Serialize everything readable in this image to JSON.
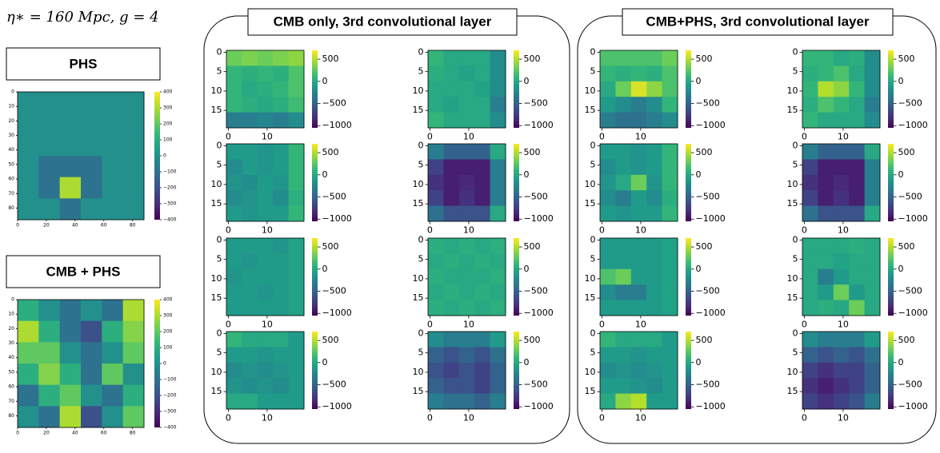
{
  "caption": "η∗ = 160 Mpc, g = 4",
  "panel_groups": [
    {
      "title": "CMB only, 3rd convolutional layer"
    },
    {
      "title": "CMB+PHS, 3rd convolutional layer"
    }
  ],
  "chart_data": [
    {
      "type": "heatmap",
      "title": "PHS",
      "colormap": "viridis",
      "xlim": [
        0,
        88
      ],
      "ylim": [
        88,
        0
      ],
      "xticks": [
        0,
        20,
        40,
        60,
        80
      ],
      "yticks": [
        0,
        10,
        20,
        30,
        40,
        50,
        60,
        70,
        80
      ],
      "clim": [
        -400,
        400
      ],
      "cticks": [
        400,
        300,
        200,
        100,
        0,
        {
          "value": -100,
          "label": "−100"
        },
        {
          "value": -200,
          "label": "−200"
        },
        {
          "value": -300,
          "label": "−300"
        },
        {
          "value": -400,
          "label": "−400"
        }
      ],
      "values": [
        [
          0,
          0,
          0,
          0,
          0,
          0
        ],
        [
          0,
          0,
          0,
          0,
          0,
          0
        ],
        [
          0,
          0,
          0,
          0,
          0,
          0
        ],
        [
          0,
          -100,
          -100,
          -100,
          0,
          0
        ],
        [
          0,
          -100,
          300,
          -100,
          0,
          0
        ],
        [
          0,
          0,
          -100,
          0,
          0,
          0
        ]
      ]
    },
    {
      "type": "heatmap",
      "title": "CMB + PHS",
      "colormap": "viridis",
      "xlim": [
        0,
        88
      ],
      "ylim": [
        88,
        0
      ],
      "xticks": [
        0,
        20,
        40,
        60,
        80
      ],
      "yticks": [
        0,
        10,
        20,
        30,
        40,
        50,
        60,
        70,
        80
      ],
      "clim": [
        -400,
        400
      ],
      "cticks": [
        400,
        300,
        200,
        100,
        0,
        {
          "value": -100,
          "label": "−100"
        },
        {
          "value": -200,
          "label": "−200"
        },
        {
          "value": -300,
          "label": "−300"
        },
        {
          "value": -400,
          "label": "−400"
        }
      ],
      "values": [
        [
          100,
          0,
          -100,
          0,
          -100,
          300
        ],
        [
          300,
          100,
          -100,
          -200,
          100,
          250
        ],
        [
          200,
          200,
          0,
          -100,
          0,
          200
        ],
        [
          100,
          250,
          100,
          -100,
          200,
          0
        ],
        [
          -100,
          100,
          200,
          0,
          -100,
          100
        ],
        [
          0,
          -100,
          300,
          -200,
          0,
          200
        ]
      ]
    },
    {
      "type": "heatmap",
      "colormap": "viridis",
      "xlim": [
        -0.5,
        19.5
      ],
      "ylim": [
        19.5,
        -0.5
      ],
      "xticks": [
        0,
        10
      ],
      "yticks": [
        0,
        5,
        10,
        15
      ],
      "clim": [
        -1050,
        700
      ],
      "cticks": [
        500,
        0,
        {
          "value": -500,
          "label": "−500"
        },
        {
          "value": -1000,
          "label": "−1000"
        }
      ],
      "values": [
        [
          300,
          350,
          300,
          350,
          400
        ],
        [
          100,
          50,
          100,
          50,
          200
        ],
        [
          100,
          0,
          50,
          100,
          200
        ],
        [
          100,
          50,
          0,
          50,
          150
        ],
        [
          -300,
          -300,
          -250,
          -300,
          -200
        ]
      ]
    },
    {
      "type": "heatmap",
      "colormap": "viridis",
      "xlim": [
        -0.5,
        19.5
      ],
      "ylim": [
        19.5,
        -0.5
      ],
      "xticks": [
        0,
        10
      ],
      "yticks": [
        0,
        5,
        10,
        15
      ],
      "clim": [
        -1050,
        700
      ],
      "cticks": [
        500,
        0,
        {
          "value": -500,
          "label": "−500"
        },
        {
          "value": -1000,
          "label": "−1000"
        }
      ],
      "values": [
        [
          100,
          0,
          0,
          0,
          -200
        ],
        [
          50,
          0,
          -50,
          0,
          -200
        ],
        [
          0,
          0,
          0,
          -50,
          -200
        ],
        [
          0,
          -50,
          0,
          0,
          -300
        ],
        [
          100,
          0,
          0,
          0,
          -200
        ]
      ]
    },
    {
      "type": "heatmap",
      "colormap": "viridis",
      "xlim": [
        -0.5,
        19.5
      ],
      "ylim": [
        19.5,
        -0.5
      ],
      "xticks": [
        0,
        10
      ],
      "yticks": [
        0,
        5,
        10,
        15
      ],
      "clim": [
        -1050,
        700
      ],
      "cticks": [
        500,
        0,
        {
          "value": -500,
          "label": "−500"
        },
        {
          "value": -1000,
          "label": "−1000"
        }
      ],
      "values": [
        [
          -100,
          -100,
          -150,
          -100,
          100
        ],
        [
          -200,
          -100,
          -150,
          -100,
          100
        ],
        [
          -150,
          -200,
          -100,
          -150,
          100
        ],
        [
          -200,
          -150,
          -100,
          -200,
          50
        ],
        [
          -100,
          -150,
          -100,
          -100,
          100
        ]
      ]
    },
    {
      "type": "heatmap",
      "colormap": "viridis",
      "xlim": [
        -0.5,
        19.5
      ],
      "ylim": [
        19.5,
        -0.5
      ],
      "xticks": [
        0,
        10
      ],
      "yticks": [
        0,
        5,
        10,
        15
      ],
      "clim": [
        -1050,
        700
      ],
      "cticks": [
        500,
        0,
        {
          "value": -500,
          "label": "−500"
        },
        {
          "value": -1000,
          "label": "−1000"
        }
      ],
      "values": [
        [
          -300,
          -500,
          -500,
          -500,
          0
        ],
        [
          -700,
          -900,
          -900,
          -900,
          -300
        ],
        [
          -800,
          -900,
          -850,
          -900,
          -300
        ],
        [
          -700,
          -900,
          -800,
          -900,
          -300
        ],
        [
          -400,
          -600,
          -600,
          -600,
          0
        ]
      ]
    },
    {
      "type": "heatmap",
      "colormap": "viridis",
      "xlim": [
        -0.5,
        19.5
      ],
      "ylim": [
        19.5,
        -0.5
      ],
      "xticks": [
        0,
        10
      ],
      "yticks": [
        0,
        5,
        10,
        15
      ],
      "clim": [
        -1050,
        700
      ],
      "cticks": [
        500,
        0,
        {
          "value": -500,
          "label": "−500"
        },
        {
          "value": -1000,
          "label": "−1000"
        }
      ],
      "values": [
        [
          -100,
          -100,
          -100,
          -150,
          -50
        ],
        [
          -100,
          -150,
          -100,
          -100,
          -50
        ],
        [
          -150,
          -100,
          -100,
          -100,
          -50
        ],
        [
          -100,
          -100,
          -150,
          -100,
          -50
        ],
        [
          -100,
          -100,
          -100,
          -100,
          -50
        ]
      ]
    },
    {
      "type": "heatmap",
      "colormap": "viridis",
      "xlim": [
        -0.5,
        19.5
      ],
      "ylim": [
        19.5,
        -0.5
      ],
      "xticks": [
        0,
        10
      ],
      "yticks": [
        0,
        5,
        10,
        15
      ],
      "clim": [
        -1050,
        700
      ],
      "cticks": [
        500,
        0,
        {
          "value": -500,
          "label": "−500"
        },
        {
          "value": -1000,
          "label": "−1000"
        }
      ],
      "values": [
        [
          50,
          0,
          50,
          0,
          50
        ],
        [
          0,
          50,
          0,
          50,
          0
        ],
        [
          50,
          0,
          0,
          0,
          50
        ],
        [
          0,
          50,
          0,
          50,
          0
        ],
        [
          50,
          0,
          50,
          0,
          50
        ]
      ]
    },
    {
      "type": "heatmap",
      "colormap": "viridis",
      "xlim": [
        -0.5,
        19.5
      ],
      "ylim": [
        19.5,
        -0.5
      ],
      "xticks": [
        0,
        10
      ],
      "yticks": [
        0,
        5,
        10,
        15
      ],
      "clim": [
        -1050,
        700
      ],
      "cticks": [
        500,
        0,
        {
          "value": -500,
          "label": "−500"
        },
        {
          "value": -1000,
          "label": "−1000"
        }
      ],
      "values": [
        [
          100,
          0,
          0,
          0,
          -100
        ],
        [
          -100,
          -100,
          -150,
          -100,
          -100
        ],
        [
          -200,
          -150,
          -200,
          -150,
          -100
        ],
        [
          -150,
          -200,
          -150,
          -200,
          -100
        ],
        [
          0,
          0,
          -100,
          -100,
          -100
        ]
      ]
    },
    {
      "type": "heatmap",
      "colormap": "viridis",
      "xlim": [
        -0.5,
        19.5
      ],
      "ylim": [
        19.5,
        -0.5
      ],
      "xticks": [
        0,
        10
      ],
      "yticks": [
        0,
        5,
        10,
        15
      ],
      "clim": [
        -1050,
        700
      ],
      "cticks": [
        500,
        0,
        {
          "value": -500,
          "label": "−500"
        },
        {
          "value": -1000,
          "label": "−1000"
        }
      ],
      "values": [
        [
          -200,
          -300,
          -300,
          -300,
          -100
        ],
        [
          -500,
          -600,
          -500,
          -600,
          -400
        ],
        [
          -600,
          -700,
          -600,
          -700,
          -500
        ],
        [
          -500,
          -600,
          -600,
          -700,
          -500
        ],
        [
          -300,
          -400,
          -400,
          -500,
          -300
        ]
      ]
    },
    {
      "type": "heatmap",
      "colormap": "viridis",
      "xlim": [
        -0.5,
        19.5
      ],
      "ylim": [
        19.5,
        -0.5
      ],
      "xticks": [
        0,
        10
      ],
      "yticks": [
        0,
        5,
        10,
        15
      ],
      "clim": [
        -1050,
        700
      ],
      "cticks": [
        500,
        0,
        {
          "value": -500,
          "label": "−500"
        },
        {
          "value": -1000,
          "label": "−1000"
        }
      ],
      "values": [
        [
          200,
          200,
          200,
          200,
          300
        ],
        [
          100,
          50,
          100,
          50,
          200
        ],
        [
          0,
          300,
          600,
          400,
          200
        ],
        [
          -100,
          -200,
          -300,
          -200,
          100
        ],
        [
          -300,
          -400,
          -400,
          -300,
          -200
        ]
      ]
    },
    {
      "type": "heatmap",
      "colormap": "viridis",
      "xlim": [
        -0.5,
        19.5
      ],
      "ylim": [
        19.5,
        -0.5
      ],
      "xticks": [
        0,
        10
      ],
      "yticks": [
        0,
        5,
        10,
        15
      ],
      "clim": [
        -1050,
        700
      ],
      "cticks": [
        500,
        0,
        {
          "value": -500,
          "label": "−500"
        },
        {
          "value": -1000,
          "label": "−1000"
        }
      ],
      "values": [
        [
          100,
          100,
          0,
          50,
          -200
        ],
        [
          50,
          100,
          200,
          0,
          -200
        ],
        [
          100,
          500,
          400,
          100,
          -200
        ],
        [
          50,
          200,
          100,
          0,
          -300
        ],
        [
          100,
          0,
          0,
          0,
          -200
        ]
      ]
    },
    {
      "type": "heatmap",
      "colormap": "viridis",
      "xlim": [
        -0.5,
        19.5
      ],
      "ylim": [
        19.5,
        -0.5
      ],
      "xticks": [
        0,
        10
      ],
      "yticks": [
        0,
        5,
        10,
        15
      ],
      "clim": [
        -1050,
        700
      ],
      "cticks": [
        500,
        0,
        {
          "value": -500,
          "label": "−500"
        },
        {
          "value": -1000,
          "label": "−1000"
        }
      ],
      "values": [
        [
          -100,
          -100,
          -150,
          -100,
          100
        ],
        [
          -200,
          -100,
          -150,
          -100,
          100
        ],
        [
          -150,
          0,
          300,
          -150,
          100
        ],
        [
          -200,
          -300,
          -100,
          -200,
          50
        ],
        [
          -100,
          -150,
          -100,
          -100,
          100
        ]
      ]
    },
    {
      "type": "heatmap",
      "colormap": "viridis",
      "xlim": [
        -0.5,
        19.5
      ],
      "ylim": [
        19.5,
        -0.5
      ],
      "xticks": [
        0,
        10
      ],
      "yticks": [
        0,
        5,
        10,
        15
      ],
      "clim": [
        -1050,
        700
      ],
      "cticks": [
        500,
        0,
        {
          "value": -500,
          "label": "−500"
        },
        {
          "value": -1000,
          "label": "−1000"
        }
      ],
      "values": [
        [
          -300,
          -500,
          -500,
          -500,
          0
        ],
        [
          -700,
          -900,
          -900,
          -900,
          -300
        ],
        [
          -800,
          -900,
          -850,
          -900,
          -300
        ],
        [
          -700,
          -900,
          -800,
          -900,
          -300
        ],
        [
          -400,
          -600,
          -600,
          -600,
          0
        ]
      ]
    },
    {
      "type": "heatmap",
      "colormap": "viridis",
      "xlim": [
        -0.5,
        19.5
      ],
      "ylim": [
        19.5,
        -0.5
      ],
      "xticks": [
        0,
        10
      ],
      "yticks": [
        0,
        5,
        10,
        15
      ],
      "clim": [
        -1050,
        700
      ],
      "cticks": [
        500,
        0,
        {
          "value": -500,
          "label": "−500"
        },
        {
          "value": -1000,
          "label": "−1000"
        }
      ],
      "values": [
        [
          -100,
          -100,
          -100,
          -100,
          -50
        ],
        [
          -100,
          -100,
          -100,
          -100,
          -50
        ],
        [
          200,
          300,
          -100,
          -100,
          -50
        ],
        [
          -200,
          -300,
          -300,
          -100,
          -50
        ],
        [
          -100,
          -100,
          -100,
          -100,
          -50
        ]
      ]
    },
    {
      "type": "heatmap",
      "colormap": "viridis",
      "xlim": [
        -0.5,
        19.5
      ],
      "ylim": [
        19.5,
        -0.5
      ],
      "xticks": [
        0,
        10
      ],
      "yticks": [
        0,
        5,
        10,
        15
      ],
      "clim": [
        -1050,
        700
      ],
      "cticks": [
        500,
        0,
        {
          "value": -500,
          "label": "−500"
        },
        {
          "value": -1000,
          "label": "−1000"
        }
      ],
      "values": [
        [
          0,
          0,
          0,
          50,
          0
        ],
        [
          0,
          0,
          -50,
          0,
          0
        ],
        [
          0,
          -300,
          -100,
          0,
          0
        ],
        [
          0,
          -100,
          300,
          -100,
          0
        ],
        [
          0,
          50,
          0,
          300,
          0
        ]
      ]
    },
    {
      "type": "heatmap",
      "colormap": "viridis",
      "xlim": [
        -0.5,
        19.5
      ],
      "ylim": [
        19.5,
        -0.5
      ],
      "xticks": [
        0,
        10
      ],
      "yticks": [
        0,
        5,
        10,
        15
      ],
      "clim": [
        -1050,
        700
      ],
      "cticks": [
        500,
        0,
        {
          "value": -500,
          "label": "−500"
        },
        {
          "value": -1000,
          "label": "−1000"
        }
      ],
      "values": [
        [
          100,
          0,
          0,
          0,
          -100
        ],
        [
          -100,
          -100,
          -150,
          -100,
          -100
        ],
        [
          -200,
          -150,
          -200,
          -150,
          -100
        ],
        [
          -100,
          -100,
          -150,
          -200,
          -100
        ],
        [
          0,
          400,
          500,
          -100,
          -100
        ]
      ]
    },
    {
      "type": "heatmap",
      "colormap": "viridis",
      "xlim": [
        -0.5,
        19.5
      ],
      "ylim": [
        19.5,
        -0.5
      ],
      "xticks": [
        0,
        10
      ],
      "yticks": [
        0,
        5,
        10,
        15
      ],
      "clim": [
        -1050,
        700
      ],
      "cticks": [
        500,
        0,
        {
          "value": -500,
          "label": "−500"
        },
        {
          "value": -1000,
          "label": "−1000"
        }
      ],
      "values": [
        [
          -200,
          -300,
          -300,
          -300,
          -100
        ],
        [
          -500,
          -600,
          -500,
          -600,
          -400
        ],
        [
          -700,
          -800,
          -700,
          -700,
          -500
        ],
        [
          -800,
          -900,
          -800,
          -700,
          -500
        ],
        [
          -700,
          -800,
          -700,
          -600,
          -300
        ]
      ]
    }
  ]
}
